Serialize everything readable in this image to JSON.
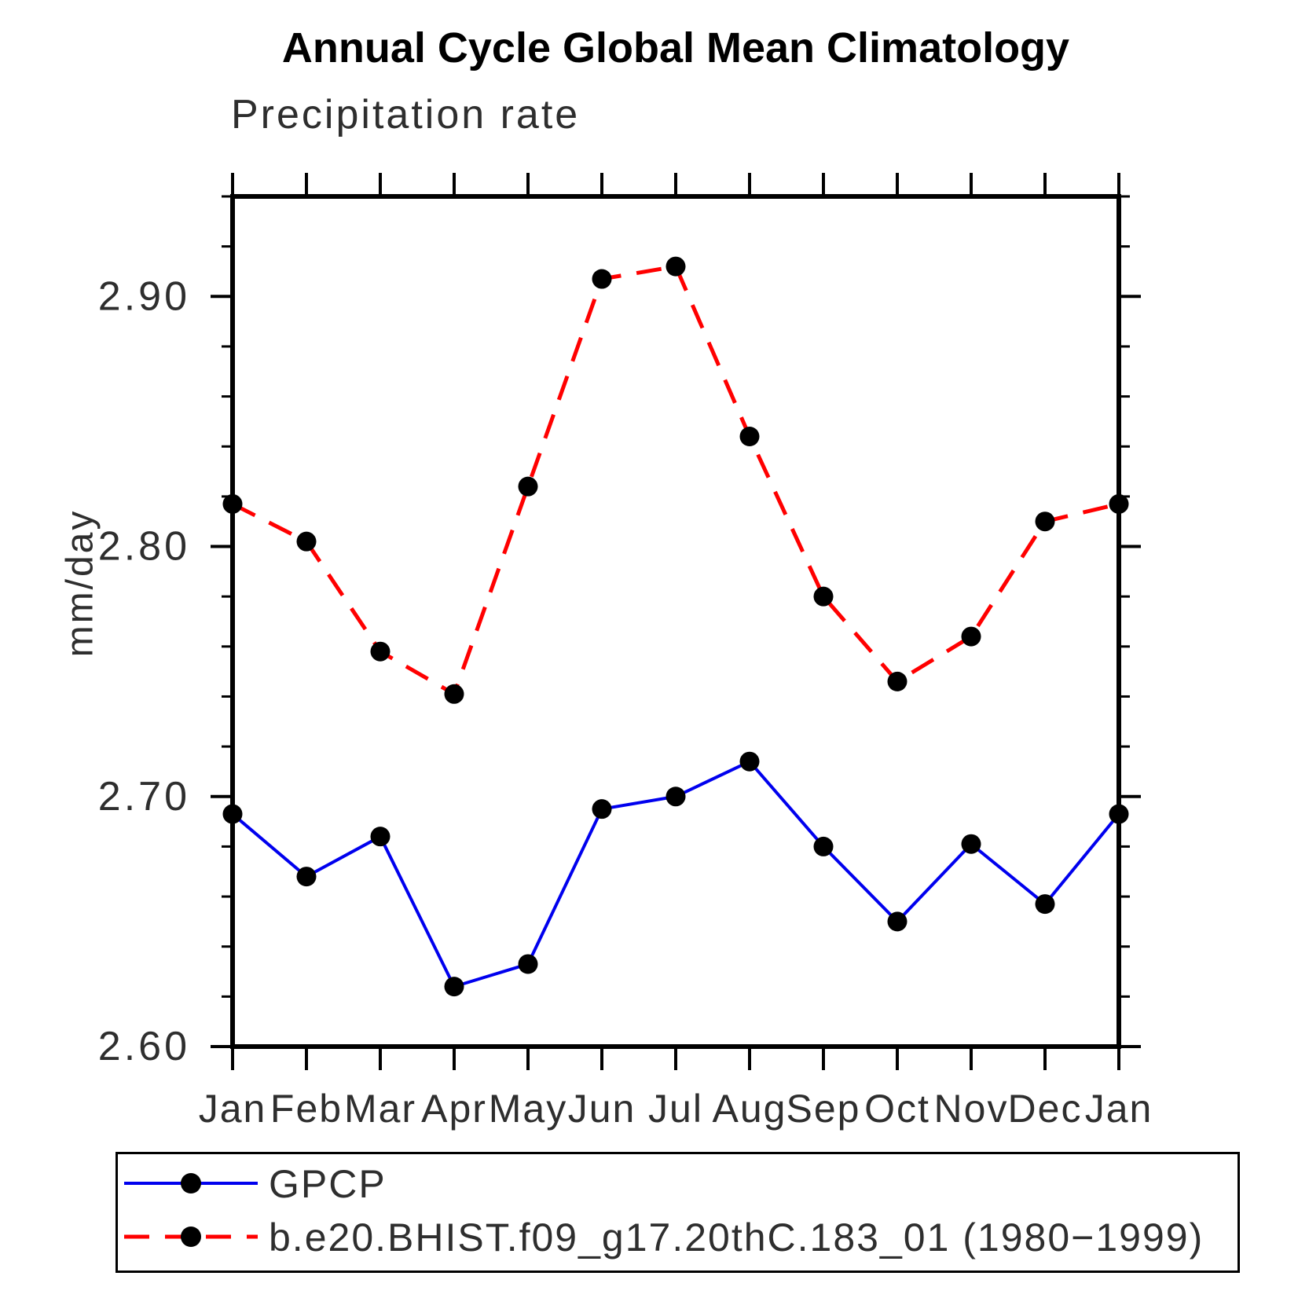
{
  "chart_data": {
    "type": "line",
    "title": "Annual Cycle Global Mean Climatology",
    "subtitle": "Precipitation rate",
    "ylabel": "mm/day",
    "xlabel": "",
    "grid": false,
    "legend_position": "bottom-left-box",
    "x_categories": [
      "Jan",
      "Feb",
      "Mar",
      "Apr",
      "May",
      "Jun",
      "Jul",
      "Aug",
      "Sep",
      "Oct",
      "Nov",
      "Dec",
      "Jan"
    ],
    "ylim": [
      2.6,
      2.94
    ],
    "ytick_major": [
      2.6,
      2.7,
      2.8,
      2.9
    ],
    "ytick_major_labels": [
      "2.60",
      "2.70",
      "2.80",
      "2.90"
    ],
    "ytick_minor_step": 0.02,
    "axis_color": "#000000",
    "marker_color": "#000000",
    "series": [
      {
        "name": "GPCP",
        "color": "#0000ee",
        "line_style": "solid",
        "marker": "circle",
        "values": [
          2.693,
          2.668,
          2.684,
          2.624,
          2.633,
          2.695,
          2.7,
          2.714,
          2.68,
          2.65,
          2.681,
          2.657,
          2.693
        ]
      },
      {
        "name": "b.e20.BHIST.f09_g17.20thC.183_01 (1980−1999)",
        "color": "#ff0000",
        "line_style": "dashed",
        "marker": "circle",
        "values": [
          2.817,
          2.802,
          2.758,
          2.741,
          2.824,
          2.907,
          2.912,
          2.844,
          2.78,
          2.746,
          2.764,
          2.81,
          2.817
        ]
      }
    ]
  }
}
